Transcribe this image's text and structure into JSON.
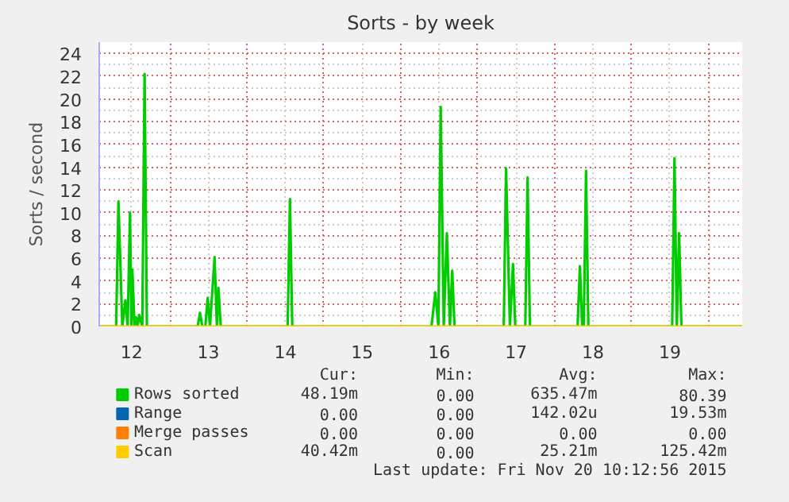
{
  "chart_data": {
    "type": "line",
    "title": "Sorts - by week",
    "ylabel": "Sorts / second",
    "xlim": [
      11.58,
      19.94
    ],
    "xticks": [
      12,
      13,
      14,
      15,
      16,
      17,
      18,
      19
    ],
    "ylim": [
      0,
      25
    ],
    "yticks": [
      0,
      2,
      4,
      6,
      8,
      10,
      12,
      14,
      16,
      18,
      20,
      22,
      24
    ],
    "grid": true,
    "legend": "bottom",
    "line_style": "solid",
    "marker": "none",
    "series": [
      {
        "name": "Rows sorted",
        "color": "#00cc00",
        "x": [
          11.58,
          11.8,
          11.83,
          11.88,
          11.92,
          11.95,
          11.98,
          12.0,
          12.01,
          12.04,
          12.06,
          12.08,
          12.1,
          12.14,
          12.17,
          12.2,
          12.86,
          12.89,
          12.92,
          12.96,
          12.99,
          13.02,
          13.08,
          13.11,
          13.13,
          13.16,
          14.03,
          14.06,
          14.09,
          15.9,
          15.95,
          15.99,
          16.02,
          16.06,
          16.1,
          16.14,
          16.17,
          16.2,
          16.84,
          16.87,
          16.92,
          16.96,
          16.99,
          17.12,
          17.15,
          17.18,
          17.8,
          17.83,
          17.86,
          17.88,
          17.91,
          17.94,
          19.03,
          19.06,
          19.09,
          19.12,
          19.15,
          19.94
        ],
        "values": [
          0,
          0,
          11,
          0,
          2.3,
          0,
          10,
          0,
          5,
          0,
          0.8,
          0,
          1,
          0,
          22.2,
          0,
          0,
          1.2,
          0,
          0,
          2.5,
          0,
          6.1,
          0,
          3.4,
          0,
          0,
          11.2,
          0,
          0,
          3,
          0,
          19.3,
          0,
          8.2,
          0,
          4.9,
          0,
          0,
          13.9,
          0,
          5.5,
          0,
          0,
          13.1,
          0,
          0,
          5.3,
          0,
          0,
          13.7,
          0,
          0,
          14.8,
          0,
          8.2,
          0,
          0
        ]
      },
      {
        "name": "Range",
        "color": "#0066b3"
      },
      {
        "name": "Merge passes",
        "color": "#ff8000"
      },
      {
        "name": "Scan",
        "color": "#ffcc00",
        "x": [
          11.58,
          19.94
        ],
        "values": [
          0,
          0
        ]
      }
    ],
    "annotations": [
      "Cur:",
      "Min:",
      "Avg:",
      "Max:",
      "48.19m",
      "0.00",
      "635.47m",
      "80.39",
      "0.00",
      "0.00",
      "142.02u",
      "19.53m",
      "0.00",
      "0.00",
      "0.00",
      "0.00",
      "40.42m",
      "0.00",
      "25.21m",
      "125.42m",
      "Last update: Fri Nov 20 10:12:56 2015"
    ]
  }
}
